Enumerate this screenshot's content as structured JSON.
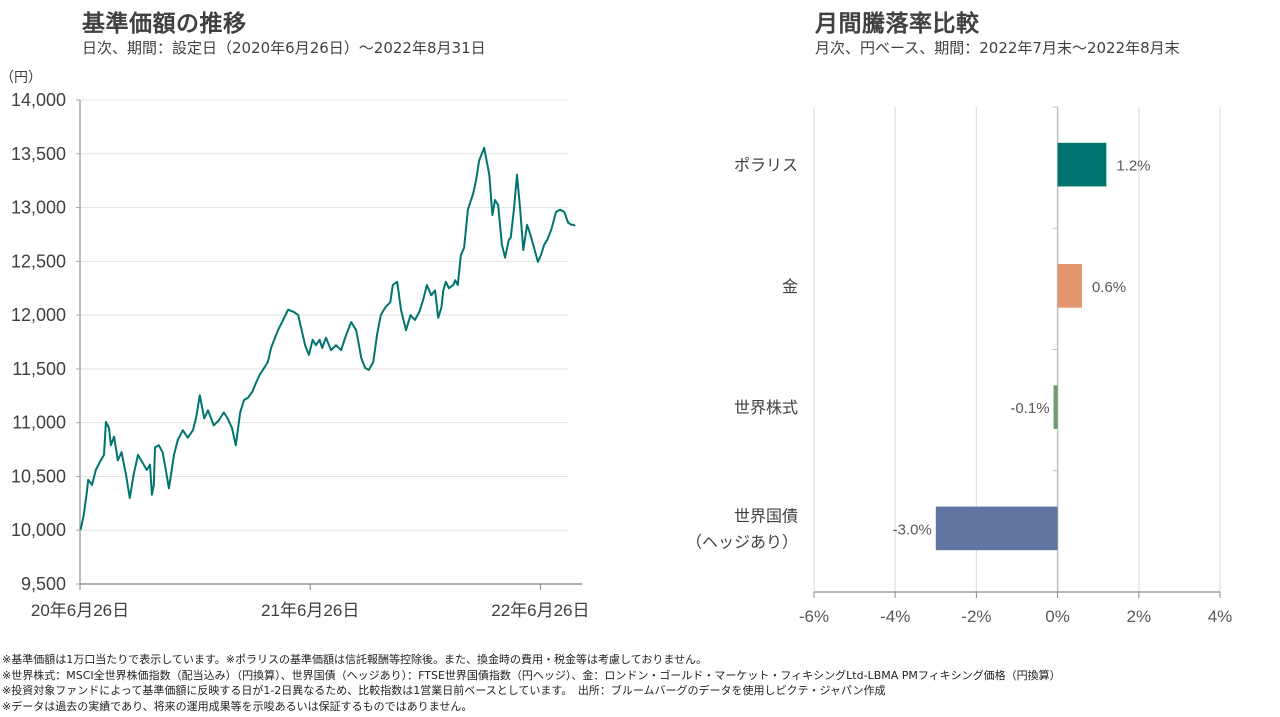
{
  "left_panel": {
    "title": "基準価額の推移",
    "subtitle": "日次、期間：設定日（2020年6月26日）～2022年8月31日"
  },
  "right_panel": {
    "title": "月間騰落率比較",
    "subtitle": "月次、円ベース、期間：2022年7月末～2022年8月末"
  },
  "chart_data": [
    {
      "type": "line",
      "title": "基準価額の推移",
      "ylabel": "（円）",
      "xlabel": "",
      "ylim": [
        9500,
        14000
      ],
      "yticks": [
        9500,
        10000,
        10500,
        11000,
        11500,
        12000,
        12500,
        13000,
        13500,
        14000
      ],
      "ytick_labels": [
        "9,500",
        "10,000",
        "10,500",
        "11,000",
        "11,500",
        "12,000",
        "12,500",
        "13,000",
        "13,500",
        "14,000"
      ],
      "x_start": "2020-06-26",
      "x_end": "2022-08-31",
      "xlim_days": [
        0,
        796
      ],
      "xticks_days": [
        0,
        365,
        730
      ],
      "xtick_labels": [
        "20年6月26日",
        "21年6月26日",
        "22年6月26日"
      ],
      "grid": true,
      "series": [
        {
          "name": "ポラリス",
          "color": "#007570",
          "days": [
            1,
            6,
            11,
            13,
            19,
            25,
            32,
            38,
            41,
            46,
            49,
            54,
            60,
            66,
            73,
            79,
            85,
            92,
            98,
            106,
            111,
            114,
            117,
            119,
            125,
            131,
            136,
            141,
            149,
            155,
            163,
            171,
            179,
            184,
            190,
            197,
            203,
            212,
            220,
            228,
            234,
            241,
            247,
            254,
            260,
            266,
            273,
            279,
            285,
            292,
            298,
            303,
            308,
            314,
            322,
            330,
            339,
            346,
            357,
            363,
            369,
            374,
            380,
            384,
            390,
            398,
            406,
            414,
            422,
            430,
            438,
            446,
            452,
            458,
            465,
            471,
            477,
            484,
            492,
            496,
            503,
            509,
            517,
            524,
            531,
            538,
            544,
            550,
            557,
            563,
            568,
            573,
            576,
            580,
            585,
            592,
            595,
            599,
            604,
            609,
            615,
            620,
            623,
            628,
            633,
            641,
            649,
            654,
            658,
            663,
            669,
            674,
            680,
            683,
            688,
            693,
            698,
            703,
            709,
            714,
            720,
            726,
            731,
            736,
            741,
            747,
            755,
            761,
            768,
            774,
            779,
            782,
            785
          ],
          "values": [
            10004,
            10143,
            10357,
            10470,
            10420,
            10560,
            10640,
            10700,
            11007,
            10950,
            10790,
            10870,
            10650,
            10725,
            10515,
            10300,
            10515,
            10700,
            10640,
            10560,
            10610,
            10330,
            10420,
            10770,
            10790,
            10725,
            10560,
            10390,
            10700,
            10840,
            10930,
            10860,
            10930,
            11040,
            11255,
            11040,
            11115,
            10975,
            11020,
            11095,
            11040,
            10950,
            10790,
            11095,
            11210,
            11230,
            11285,
            11370,
            11445,
            11510,
            11565,
            11695,
            11770,
            11860,
            11955,
            12050,
            12030,
            12000,
            11720,
            11630,
            11770,
            11720,
            11770,
            11695,
            11790,
            11675,
            11720,
            11675,
            11815,
            11935,
            11860,
            11600,
            11510,
            11490,
            11565,
            11815,
            12000,
            12070,
            12120,
            12280,
            12310,
            12050,
            11860,
            12000,
            11955,
            12030,
            12140,
            12280,
            12185,
            12230,
            11975,
            12070,
            12230,
            12310,
            12250,
            12280,
            12325,
            12280,
            12560,
            12625,
            12980,
            13070,
            13120,
            13255,
            13440,
            13555,
            13305,
            12930,
            13070,
            13025,
            12655,
            12535,
            12700,
            12720,
            12980,
            13305,
            12980,
            12605,
            12840,
            12750,
            12625,
            12495,
            12560,
            12655,
            12700,
            12790,
            12960,
            12980,
            12960,
            12860,
            12840,
            12840,
            12830
          ]
        }
      ]
    },
    {
      "type": "bar",
      "orientation": "horizontal",
      "title": "月間騰落率比較",
      "categories": [
        "ポラリス",
        "金",
        "世界株式",
        "世界国債（ヘッジあり）"
      ],
      "category_lines": [
        [
          "ポラリス"
        ],
        [
          "金"
        ],
        [
          "世界株式"
        ],
        [
          "世界国債",
          "（ヘッジあり）"
        ]
      ],
      "values": [
        1.2,
        0.6,
        -0.1,
        -3.0
      ],
      "value_labels": [
        "1.2%",
        "0.6%",
        "-0.1%",
        "-3.0%"
      ],
      "colors": [
        "#007570",
        "#E3956F",
        "#6E9A70",
        "#6075A0"
      ],
      "xlim": [
        -6,
        4
      ],
      "xticks": [
        -6,
        -4,
        -2,
        0,
        2,
        4
      ],
      "xtick_labels": [
        "-6%",
        "-4%",
        "-2%",
        "0%",
        "2%",
        "4%"
      ],
      "xlabel": "",
      "ylabel": "",
      "grid": true
    }
  ],
  "footnotes": [
    "※基準価額は1万口当たりで表示しています。※ポラリスの基準価額は信託報酬等控除後。また、換金時の費用・税金等は考慮しておりません。",
    "※世界株式：MSCI全世界株価指数（配当込み）（円換算）、世界国債（ヘッジあり）：FTSE世界国債指数（円ヘッジ）、金：ロンドン・ゴールド・マーケット・フィキシングLtd-LBMA PMフィキシング価格（円換算）",
    "※投資対象ファンドによって基準価額に反映する日が1-2日異なるため、比較指数は1営業日前ベースとしています。　出所：ブルームバーグのデータを使用しピクテ・ジャパン作成",
    "※データは過去の実績であり、将来の運用成果等を示唆あるいは保証するものではありません。"
  ]
}
